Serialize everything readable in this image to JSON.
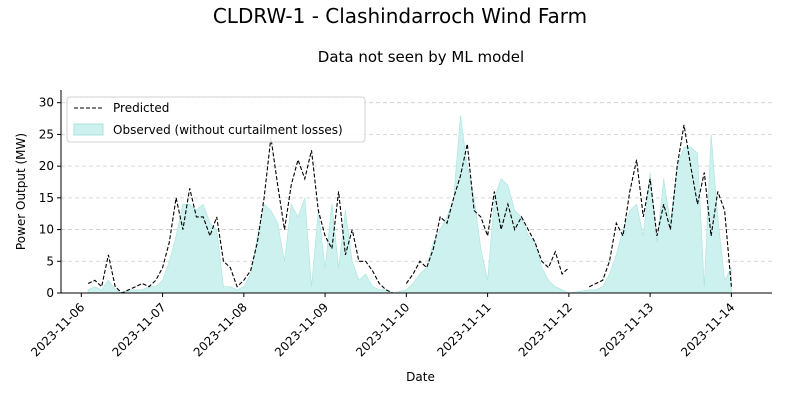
{
  "title": "CLDRW-1 - Clashindarroch Wind Farm",
  "chart_data": {
    "type": "line",
    "title": "Data not seen by ML model",
    "xlabel": "Date",
    "ylabel": "Power Output (MW)",
    "ylim": [
      0,
      32
    ],
    "xlim": [
      "2023-11-05 18:00",
      "2023-11-14 12:00"
    ],
    "yticks": [
      0,
      5,
      10,
      15,
      20,
      25,
      30
    ],
    "xticks": [
      "2023-11-06",
      "2023-11-07",
      "2023-11-08",
      "2023-11-09",
      "2023-11-10",
      "2023-11-11",
      "2023-11-12",
      "2023-11-13",
      "2023-11-14"
    ],
    "grid": "horizontal-dashed",
    "legend_position": "top-left",
    "series": [
      {
        "name": "Predicted",
        "style": "dashed-line",
        "color": "#000000",
        "x": [
          "2023-11-06 02:00",
          "2023-11-06 04:00",
          "2023-11-06 06:00",
          "2023-11-06 08:00",
          "2023-11-06 10:00",
          "2023-11-06 12:00",
          "2023-11-06 14:00",
          "2023-11-06 16:00",
          "2023-11-06 18:00",
          "2023-11-06 20:00",
          "2023-11-06 22:00",
          "2023-11-07 00:00",
          "2023-11-07 02:00",
          "2023-11-07 04:00",
          "2023-11-07 06:00",
          "2023-11-07 08:00",
          "2023-11-07 10:00",
          "2023-11-07 12:00",
          "2023-11-07 14:00",
          "2023-11-07 16:00",
          "2023-11-07 18:00",
          "2023-11-07 20:00",
          "2023-11-07 22:00",
          "2023-11-08 00:00",
          "2023-11-08 02:00",
          "2023-11-08 04:00",
          "2023-11-08 06:00",
          "2023-11-08 08:00",
          "2023-11-08 10:00",
          "2023-11-08 12:00",
          "2023-11-08 14:00",
          "2023-11-08 16:00",
          "2023-11-08 18:00",
          "2023-11-08 20:00",
          "2023-11-08 22:00",
          "2023-11-09 00:00",
          "2023-11-09 02:00",
          "2023-11-09 04:00",
          "2023-11-09 06:00",
          "2023-11-09 08:00",
          "2023-11-09 10:00",
          "2023-11-09 12:00",
          "2023-11-09 14:00",
          "2023-11-09 16:00",
          "2023-11-09 18:00",
          "2023-11-09 20:00",
          "2023-11-10 00:00",
          "2023-11-10 02:00",
          "2023-11-10 04:00",
          "2023-11-10 06:00",
          "2023-11-10 08:00",
          "2023-11-10 10:00",
          "2023-11-10 12:00",
          "2023-11-10 14:00",
          "2023-11-10 16:00",
          "2023-11-10 18:00",
          "2023-11-10 20:00",
          "2023-11-10 22:00",
          "2023-11-11 00:00",
          "2023-11-11 02:00",
          "2023-11-11 04:00",
          "2023-11-11 06:00",
          "2023-11-11 08:00",
          "2023-11-11 10:00",
          "2023-11-11 12:00",
          "2023-11-11 14:00",
          "2023-11-11 16:00",
          "2023-11-11 18:00",
          "2023-11-11 20:00",
          "2023-11-11 22:00",
          "2023-11-12 00:00",
          "2023-11-12 06:00",
          "2023-11-12 08:00",
          "2023-11-12 10:00",
          "2023-11-12 12:00",
          "2023-11-12 14:00",
          "2023-11-12 16:00",
          "2023-11-12 18:00",
          "2023-11-12 20:00",
          "2023-11-12 22:00",
          "2023-11-13 00:00",
          "2023-11-13 02:00",
          "2023-11-13 04:00",
          "2023-11-13 06:00",
          "2023-11-13 08:00",
          "2023-11-13 10:00",
          "2023-11-13 12:00",
          "2023-11-13 14:00",
          "2023-11-13 16:00",
          "2023-11-13 18:00",
          "2023-11-13 20:00",
          "2023-11-13 22:00",
          "2023-11-14 00:00"
        ],
        "values": [
          1.5,
          2.0,
          1.0,
          6.0,
          1.0,
          0.0,
          0.5,
          1.0,
          1.5,
          1.0,
          2.0,
          4.0,
          8.0,
          15.0,
          10.0,
          16.5,
          12.0,
          12.0,
          9.0,
          12.0,
          5.0,
          4.0,
          1.0,
          2.0,
          3.5,
          8.0,
          15.0,
          24.5,
          17.0,
          10.0,
          17.0,
          21.0,
          18.0,
          22.5,
          13.0,
          9.0,
          7.0,
          16.0,
          6.0,
          10.0,
          5.0,
          5.0,
          3.5,
          1.5,
          0.5,
          0.0,
          1.5,
          3.0,
          5.0,
          4.0,
          7.0,
          12.0,
          11.0,
          15.0,
          18.5,
          23.5,
          13.0,
          12.0,
          9.0,
          16.0,
          10.0,
          14.0,
          10.0,
          12.0,
          10.0,
          8.0,
          5.0,
          4.0,
          6.5,
          3.0,
          4.0,
          1.0,
          1.5,
          2.0,
          5.0,
          11.0,
          9.0,
          16.0,
          21.0,
          12.0,
          18.0,
          9.0,
          14.0,
          10.0,
          20.0,
          26.5,
          20.0,
          14.0,
          19.0,
          9.0,
          16.0,
          13.0,
          1.0
        ]
      },
      {
        "name": "Observed (without curtailment losses)",
        "style": "filled-area",
        "color": "#cdf1ee",
        "edge_color": "#a8e4de",
        "x": [
          "2023-11-06 02:00",
          "2023-11-06 04:00",
          "2023-11-06 06:00",
          "2023-11-06 08:00",
          "2023-11-06 10:00",
          "2023-11-06 12:00",
          "2023-11-06 14:00",
          "2023-11-06 16:00",
          "2023-11-06 18:00",
          "2023-11-06 20:00",
          "2023-11-06 22:00",
          "2023-11-07 00:00",
          "2023-11-07 02:00",
          "2023-11-07 04:00",
          "2023-11-07 06:00",
          "2023-11-07 08:00",
          "2023-11-07 10:00",
          "2023-11-07 12:00",
          "2023-11-07 14:00",
          "2023-11-07 16:00",
          "2023-11-07 18:00",
          "2023-11-07 20:00",
          "2023-11-07 22:00",
          "2023-11-08 00:00",
          "2023-11-08 02:00",
          "2023-11-08 04:00",
          "2023-11-08 06:00",
          "2023-11-08 08:00",
          "2023-11-08 10:00",
          "2023-11-08 12:00",
          "2023-11-08 14:00",
          "2023-11-08 16:00",
          "2023-11-08 18:00",
          "2023-11-08 20:00",
          "2023-11-08 22:00",
          "2023-11-09 00:00",
          "2023-11-09 02:00",
          "2023-11-09 04:00",
          "2023-11-09 06:00",
          "2023-11-09 08:00",
          "2023-11-09 10:00",
          "2023-11-09 12:00",
          "2023-11-09 14:00",
          "2023-11-09 16:00",
          "2023-11-09 18:00",
          "2023-11-09 20:00",
          "2023-11-10 00:00",
          "2023-11-10 02:00",
          "2023-11-10 04:00",
          "2023-11-10 06:00",
          "2023-11-10 08:00",
          "2023-11-10 10:00",
          "2023-11-10 12:00",
          "2023-11-10 14:00",
          "2023-11-10 16:00",
          "2023-11-10 18:00",
          "2023-11-10 20:00",
          "2023-11-10 22:00",
          "2023-11-11 00:00",
          "2023-11-11 02:00",
          "2023-11-11 04:00",
          "2023-11-11 06:00",
          "2023-11-11 08:00",
          "2023-11-11 10:00",
          "2023-11-11 12:00",
          "2023-11-11 14:00",
          "2023-11-11 16:00",
          "2023-11-11 18:00",
          "2023-11-11 20:00",
          "2023-11-11 22:00",
          "2023-11-12 00:00",
          "2023-11-12 06:00",
          "2023-11-12 08:00",
          "2023-11-12 10:00",
          "2023-11-12 12:00",
          "2023-11-12 14:00",
          "2023-11-12 16:00",
          "2023-11-12 18:00",
          "2023-11-12 20:00",
          "2023-11-12 22:00",
          "2023-11-13 00:00",
          "2023-11-13 02:00",
          "2023-11-13 04:00",
          "2023-11-13 06:00",
          "2023-11-13 08:00",
          "2023-11-13 10:00",
          "2023-11-13 12:00",
          "2023-11-13 14:00",
          "2023-11-13 16:00",
          "2023-11-13 18:00",
          "2023-11-13 20:00",
          "2023-11-13 22:00",
          "2023-11-14 00:00"
        ],
        "values": [
          0.5,
          1.0,
          0.5,
          2.0,
          0.5,
          0.0,
          0.5,
          0.5,
          0.5,
          1.0,
          1.0,
          2.0,
          5.0,
          9.0,
          14.0,
          14.0,
          13.0,
          14.0,
          11.0,
          10.0,
          1.0,
          1.0,
          0.5,
          1.0,
          3.0,
          9.0,
          14.0,
          13.0,
          11.0,
          5.0,
          14.0,
          12.0,
          15.0,
          1.0,
          13.0,
          4.0,
          14.0,
          4.0,
          13.0,
          5.0,
          2.0,
          3.0,
          1.0,
          0.5,
          0.5,
          0.0,
          0.5,
          1.5,
          3.0,
          4.0,
          8.0,
          10.0,
          12.0,
          15.0,
          28.0,
          20.0,
          15.0,
          7.0,
          2.0,
          15.0,
          18.0,
          17.0,
          13.0,
          12.0,
          9.0,
          8.0,
          4.0,
          2.0,
          1.0,
          0.5,
          0.0,
          0.5,
          0.5,
          1.0,
          3.0,
          6.0,
          10.0,
          13.0,
          14.0,
          9.0,
          19.0,
          8.0,
          18.0,
          11.0,
          20.0,
          23.0,
          23.0,
          22.0,
          1.0,
          25.0,
          12.0,
          2.0,
          4.0
        ]
      }
    ]
  }
}
